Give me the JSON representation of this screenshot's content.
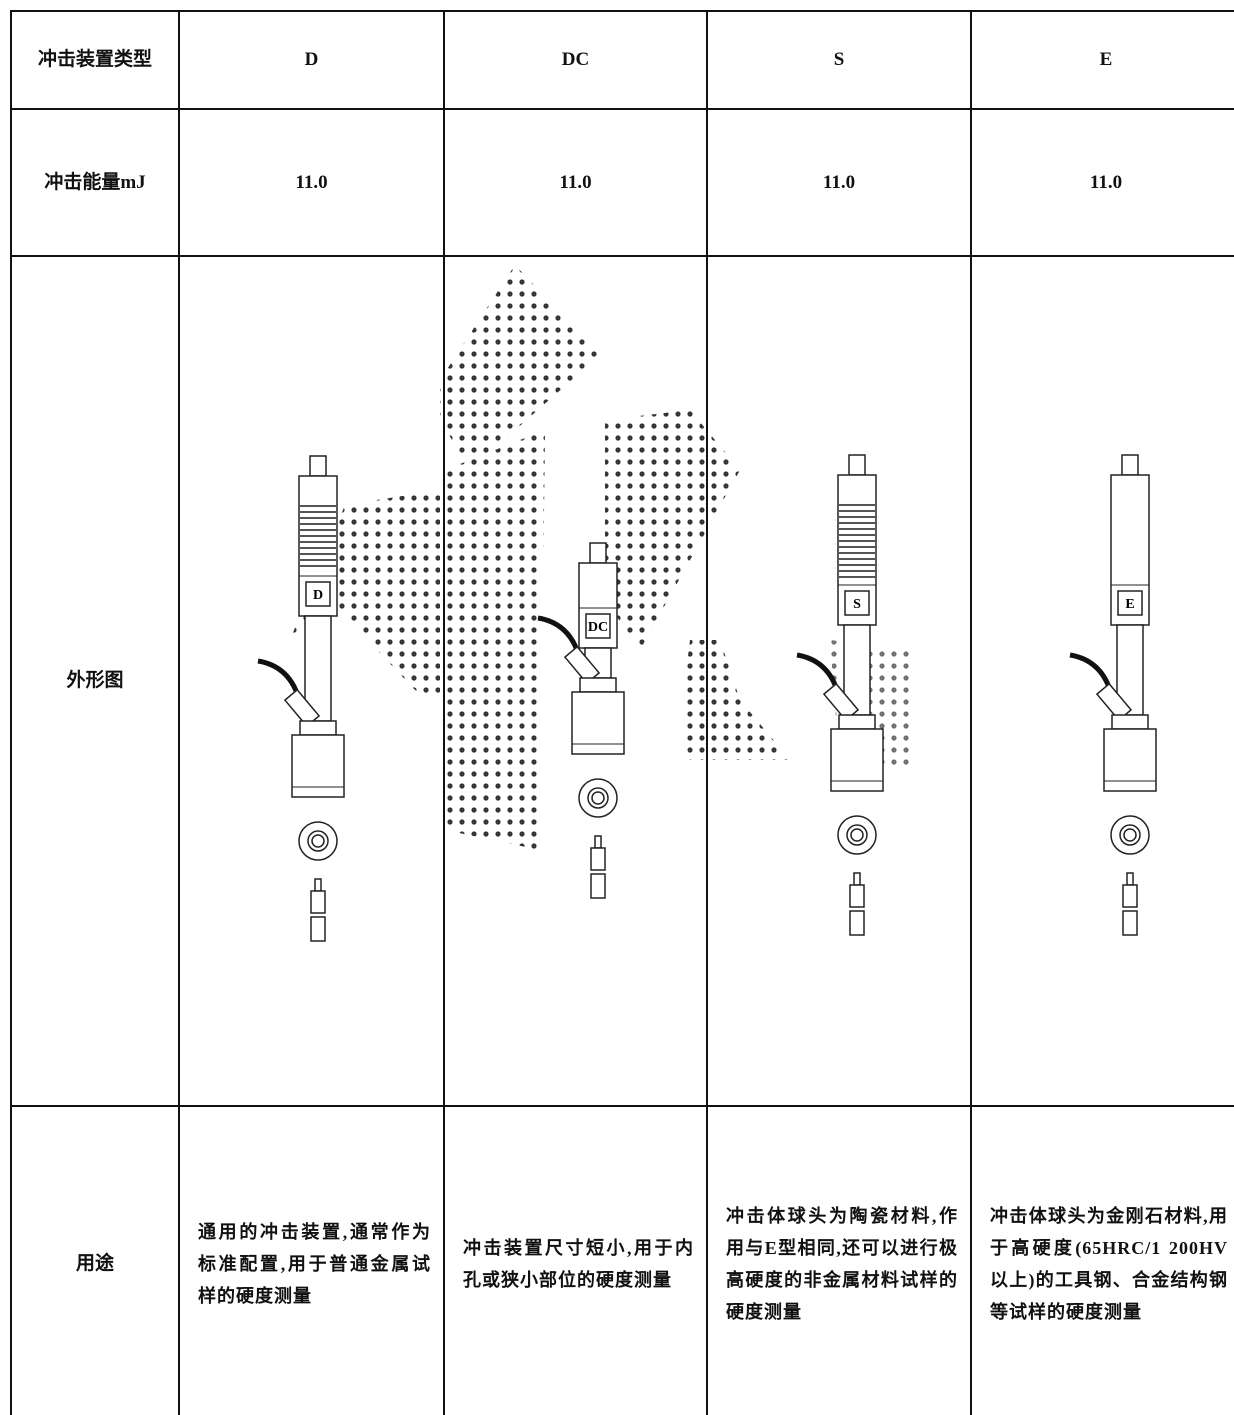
{
  "table": {
    "rows": [
      {
        "label": [
          "冲击装置类型"
        ],
        "cells": [
          "D",
          "DC",
          "S",
          "E"
        ]
      },
      {
        "label": [
          "冲击能量",
          "mJ"
        ],
        "cells": [
          "11.0",
          "11.0",
          "11.0",
          "11.0"
        ]
      },
      {
        "label": [
          "外形图"
        ]
      },
      {
        "label": [
          "用途"
        ],
        "cells": [
          "通用的冲击装置,通常作为标准配置,用于普通金属试样的硬度测量",
          "冲击装置尺寸短小,用于内孔或狭小部位的硬度测量",
          "冲击体球头为陶瓷材料,作用与E型相同,还可以进行极高硬度的非金属材料试样的硬度测量",
          "冲击体球头为金刚石材料,用于高硬度(65HRC/1 200HV以上)的工具钢、合金结构钢等试样的硬度测量"
        ]
      }
    ]
  }
}
